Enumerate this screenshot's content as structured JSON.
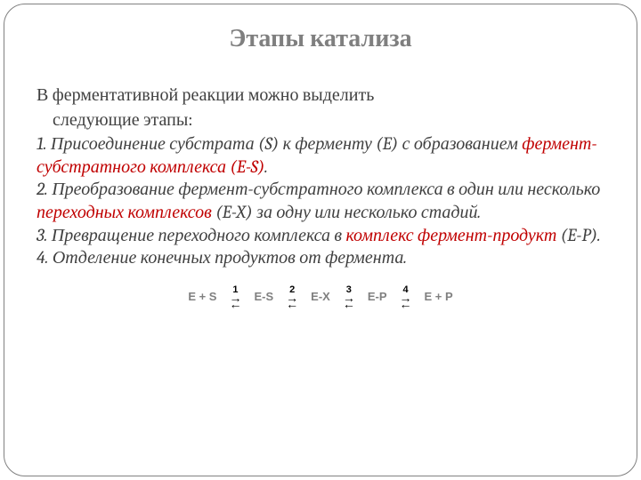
{
  "title": "Этапы катализа",
  "intro_line1": "В ферментативной реакции можно выделить",
  "intro_line2": "следующие этапы:",
  "step1": {
    "a": "1. Присоединение субстрата (S) к ферменту (E) с образованием ",
    "b": "фермент-субстратного комплекса (E-S)",
    "c": "."
  },
  "step2": {
    "a": "2. Преобразование фермент-субстратного комплекса в один или несколько ",
    "b": "переходных комплексов",
    "c": " (E-X) за одну или несколько стадий."
  },
  "step3": {
    "a": "3. Превращение переходного комплекса в ",
    "b": "комплекс фермент-продукт",
    "c": " (E-P)."
  },
  "step4": "4. Отделение конечных продуктов от фермента.",
  "reaction": {
    "states": [
      "E + S",
      "E-S",
      "E-X",
      "E-P",
      "E + P"
    ],
    "steps": [
      "1",
      "2",
      "3",
      "4"
    ],
    "arrow_right": "→",
    "arrow_left": "←",
    "state_color": "#808080",
    "num_color": "#000000",
    "arrow_color": "#000000",
    "state_fontsize": 13,
    "num_fontsize": 11
  },
  "colors": {
    "title": "#7f7f7f",
    "body": "#404040",
    "highlight": "#c00000",
    "border": "#808080",
    "background": "#ffffff"
  },
  "typography": {
    "title_fontsize": 28,
    "body_fontsize": 20,
    "title_weight": "bold",
    "body_family": "Cambria/Georgia serif"
  }
}
